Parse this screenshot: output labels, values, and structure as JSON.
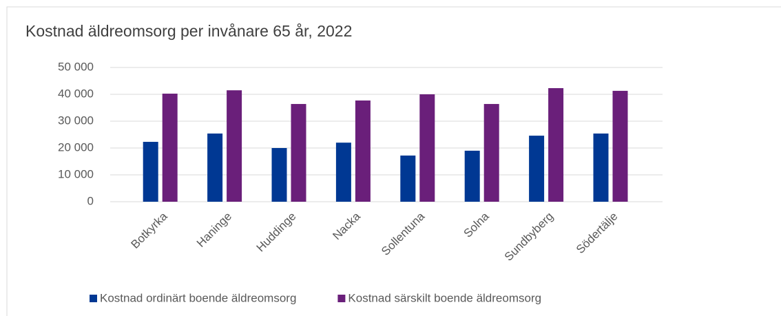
{
  "chart_data": {
    "type": "bar",
    "title": "Kostnad äldreomsorg per invånare 65 år, 2022",
    "categories": [
      "Botkyrka",
      "Haninge",
      "Huddinge",
      "Nacka",
      "Sollentuna",
      "Solna",
      "Sundbyberg",
      "Södertälje"
    ],
    "series": [
      {
        "name": "Kostnad ordinärt boende äldreomsorg",
        "color": "#003893",
        "values": [
          22300,
          25400,
          20000,
          22000,
          17200,
          19000,
          24600,
          25400
        ]
      },
      {
        "name": "Kostnad särskilt boende äldreomsorg",
        "color": "#6a1f7a",
        "values": [
          40250,
          41500,
          36400,
          37700,
          40000,
          36400,
          42300,
          41300
        ]
      }
    ],
    "ylim": [
      0,
      50000
    ],
    "yticks": [
      0,
      {
        "value": 10000,
        "label": "10 000"
      },
      {
        "value": 20000,
        "label": "20 000"
      },
      {
        "value": 30000,
        "label": "30 000"
      },
      {
        "value": 40000,
        "label": "40 000"
      },
      {
        "value": 50000,
        "label": "50 000"
      }
    ],
    "grid": true,
    "legend": "bottom"
  }
}
